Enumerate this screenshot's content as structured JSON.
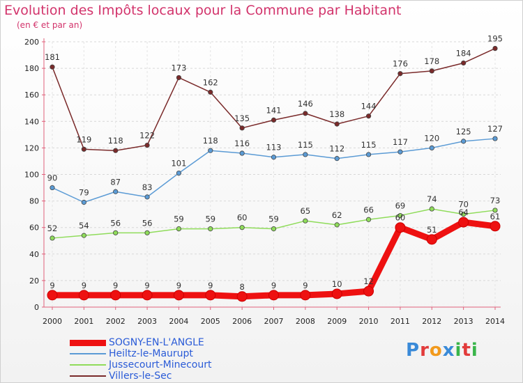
{
  "header": {
    "title": "Evolution des Impôts locaux pour la Commune par Habitant",
    "subtitle": "(en € et par an)"
  },
  "logo": {
    "text": "Proxiti",
    "letters": [
      "P",
      "r",
      "o",
      "x",
      "i",
      "t",
      "i"
    ],
    "colors": [
      "#3a8ad8",
      "#e23b3b",
      "#f29a1d",
      "#3a8ad8",
      "#39b54a",
      "#e23b3b",
      "#39b54a"
    ]
  },
  "chart_data": {
    "type": "line",
    "x": [
      2000,
      2001,
      2002,
      2003,
      2004,
      2005,
      2006,
      2007,
      2008,
      2009,
      2010,
      2011,
      2012,
      2013,
      2014
    ],
    "ylim": [
      0,
      200
    ],
    "yticks": [
      0,
      20,
      40,
      60,
      80,
      100,
      120,
      140,
      160,
      180,
      200
    ],
    "grid": true,
    "legend": "bottom-left",
    "series": [
      {
        "name": "SOGNY-EN-L'ANGLE",
        "color": "#ee1111",
        "values": [
          9,
          9,
          9,
          9,
          9,
          9,
          8,
          9,
          9,
          10,
          12,
          60,
          51,
          64,
          61
        ],
        "labels": [
          "9",
          "9",
          "9",
          "9",
          "9",
          "9",
          "8",
          "9",
          "9",
          "10",
          "12",
          "60",
          "51",
          "64",
          "61"
        ]
      },
      {
        "name": "Heiltz-le-Maurupt",
        "color": "#5b9bd5",
        "values": [
          90,
          79,
          87,
          83,
          101,
          118,
          116,
          113,
          115,
          112,
          115,
          117,
          120,
          125,
          127
        ],
        "labels": [
          "90",
          "79",
          "87",
          "83",
          "101",
          "118",
          "116",
          "113",
          "115",
          "112",
          "115",
          "117",
          "120",
          "125",
          "127"
        ]
      },
      {
        "name": "Jussecourt-Minecourt",
        "color": "#8fdc5a",
        "values": [
          52,
          54,
          56,
          56,
          59,
          59,
          60,
          59,
          65,
          62,
          66,
          69,
          74,
          70,
          73
        ],
        "labels": [
          "52",
          "54",
          "56",
          "56",
          "59",
          "59",
          "60",
          "59",
          "65",
          "62",
          "66",
          "69",
          "74",
          "70",
          "73"
        ]
      },
      {
        "name": "Villers-le-Sec",
        "color": "#7a2a2a",
        "values": [
          181,
          119,
          118,
          122,
          173,
          162,
          135,
          141,
          146,
          138,
          144,
          176,
          178,
          184,
          195
        ],
        "labels": [
          "181",
          "119",
          "118",
          "122",
          "173",
          "162",
          "135",
          "141",
          "146",
          "138",
          "144",
          "176",
          "178",
          "184",
          "195"
        ]
      }
    ]
  }
}
